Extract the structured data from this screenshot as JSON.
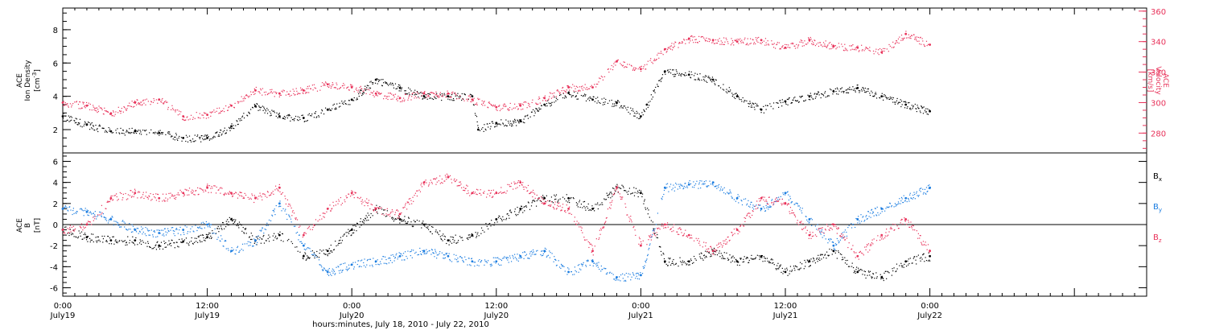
{
  "chart_data": [
    {
      "type": "scatter",
      "panel": "top",
      "ylabel_lines": [
        "ACE",
        "Ion Density",
        "[cm",
        "-3",
        "]"
      ],
      "y2label_lines": [
        "ACE",
        "Velocity",
        "[km/s]"
      ],
      "ylim": [
        0.6,
        9.3
      ],
      "y_ticks": [
        2,
        4,
        6,
        8
      ],
      "y2lim": [
        267,
        362
      ],
      "y2_ticks": [
        280,
        300,
        320,
        340,
        360
      ],
      "grid": false,
      "series": [
        {
          "name": "Ion Density",
          "axis": "left",
          "color": "#000000",
          "x_hours": [
            0,
            2,
            4,
            6,
            8,
            10,
            12,
            14,
            16,
            18,
            20,
            22,
            24,
            26,
            28,
            30,
            32,
            34,
            34.5,
            36,
            38,
            40,
            42,
            44,
            46,
            48,
            48.5,
            50,
            52,
            54,
            56,
            58,
            60,
            62,
            64,
            66,
            68,
            70,
            72
          ],
          "values": [
            2.8,
            2.3,
            1.9,
            1.9,
            1.8,
            1.5,
            1.5,
            2.2,
            3.4,
            2.8,
            2.7,
            3.2,
            3.8,
            5.0,
            4.5,
            4.0,
            4.0,
            4.0,
            2.0,
            2.4,
            2.5,
            3.5,
            4.2,
            3.8,
            3.6,
            2.8,
            3.5,
            5.5,
            5.3,
            5.0,
            4.0,
            3.2,
            3.7,
            4.0,
            4.3,
            4.5,
            4.0,
            3.5,
            3.1
          ]
        },
        {
          "name": "Velocity",
          "axis": "right",
          "color": "#e8325a",
          "x_hours": [
            0,
            2,
            4,
            6,
            8,
            10,
            12,
            14,
            16,
            18,
            20,
            22,
            24,
            26,
            28,
            30,
            32,
            34,
            36,
            38,
            40,
            42,
            44,
            46,
            48,
            50,
            52,
            54,
            56,
            58,
            60,
            62,
            64,
            66,
            68,
            70,
            72
          ],
          "values": [
            300,
            298,
            293,
            300,
            302,
            291,
            292,
            298,
            308,
            306,
            308,
            312,
            310,
            306,
            303,
            306,
            306,
            302,
            297,
            298,
            303,
            310,
            310,
            327,
            322,
            335,
            342,
            341,
            340,
            341,
            336,
            341,
            337,
            336,
            333,
            345,
            338
          ]
        }
      ]
    },
    {
      "type": "scatter",
      "panel": "bottom",
      "ylabel_lines": [
        "ACE",
        "B",
        "[nT]"
      ],
      "ylim": [
        -6.8,
        6.8
      ],
      "y_ticks": [
        -6,
        -4,
        -2,
        0,
        2,
        4,
        6
      ],
      "zero_line": true,
      "grid": false,
      "series": [
        {
          "name": "B",
          "sub": "x",
          "color": "#000000",
          "x_hours": [
            0,
            2,
            4,
            6,
            8,
            10,
            12,
            14,
            16,
            18,
            20,
            22,
            24,
            26,
            28,
            30,
            32,
            34,
            36,
            38,
            40,
            42,
            44,
            46,
            48,
            50,
            52,
            54,
            56,
            58,
            60,
            62,
            64,
            66,
            68,
            70,
            72
          ],
          "values": [
            -0.5,
            -1.2,
            -1.5,
            -1.5,
            -2.0,
            -1.6,
            -1.2,
            0.5,
            -1.5,
            -1.0,
            -3.0,
            -2.5,
            -0.5,
            1.5,
            0.5,
            0.0,
            -1.5,
            -1.0,
            0.5,
            1.5,
            2.5,
            2.5,
            1.5,
            3.5,
            3.0,
            -3.5,
            -3.5,
            -2.5,
            -3.5,
            -3.0,
            -4.5,
            -3.5,
            -2.5,
            -4.5,
            -5.0,
            -3.5,
            -3.0
          ]
        },
        {
          "name": "B",
          "sub": "y",
          "color": "#1a7ce0",
          "x_hours": [
            0,
            2,
            4,
            6,
            8,
            10,
            12,
            14,
            16,
            18,
            20,
            22,
            24,
            26,
            28,
            30,
            32,
            34,
            36,
            38,
            40,
            42,
            44,
            46,
            48,
            50,
            52,
            54,
            56,
            58,
            60,
            62,
            64,
            66,
            68,
            70,
            72
          ],
          "values": [
            1.5,
            1.2,
            0.5,
            -0.5,
            -0.8,
            -0.5,
            0.0,
            -2.5,
            -1.5,
            2.0,
            -2.0,
            -4.5,
            -3.8,
            -3.5,
            -3.0,
            -2.5,
            -3.0,
            -3.5,
            -3.5,
            -3.0,
            -2.5,
            -4.5,
            -3.5,
            -5.0,
            -4.8,
            3.5,
            3.8,
            4.0,
            2.5,
            1.5,
            3.0,
            0.5,
            -2.0,
            0.5,
            1.5,
            2.5,
            3.5
          ]
        },
        {
          "name": "B",
          "sub": "z",
          "color": "#e8325a",
          "x_hours": [
            0,
            2,
            4,
            6,
            8,
            10,
            12,
            14,
            16,
            18,
            20,
            22,
            24,
            26,
            28,
            30,
            32,
            34,
            36,
            38,
            40,
            42,
            44,
            46,
            48,
            50,
            52,
            54,
            56,
            58,
            60,
            62,
            64,
            66,
            68,
            70,
            72
          ],
          "values": [
            -0.5,
            0.0,
            2.5,
            3.0,
            2.5,
            3.0,
            3.5,
            3.0,
            2.5,
            3.5,
            -1.0,
            1.5,
            3.0,
            1.5,
            1.0,
            4.0,
            4.5,
            3.0,
            3.0,
            4.0,
            2.0,
            1.5,
            -2.5,
            3.5,
            -2.0,
            0.0,
            -1.0,
            -2.5,
            -0.5,
            2.5,
            2.0,
            -1.0,
            0.0,
            -3.0,
            -1.0,
            0.5,
            -2.5
          ]
        }
      ]
    }
  ],
  "x_axis": {
    "range_hours": [
      0,
      90
    ],
    "major_ticks": [
      {
        "hours": 0,
        "time": "0:00",
        "day": "July19"
      },
      {
        "hours": 12,
        "time": "12:00",
        "day": "July19"
      },
      {
        "hours": 24,
        "time": "0:00",
        "day": "July20"
      },
      {
        "hours": 36,
        "time": "12:00",
        "day": "July20"
      },
      {
        "hours": 48,
        "time": "0:00",
        "day": "July21"
      },
      {
        "hours": 60,
        "time": "12:00",
        "day": "July21"
      },
      {
        "hours": 72,
        "time": "0:00",
        "day": "July22"
      }
    ],
    "label": "hours:minutes, July 18, 2010 - July 22, 2010"
  }
}
